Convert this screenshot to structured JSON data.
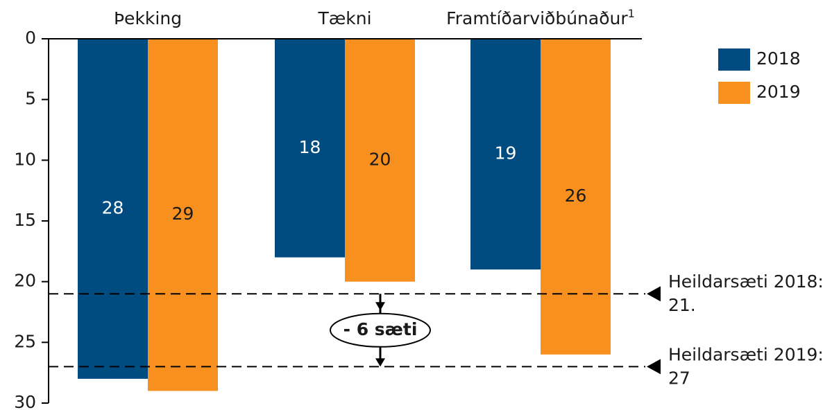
{
  "chart_data": {
    "type": "bar",
    "categories": [
      "Þekking",
      "Tækni",
      "Framtíðarviðbúnaður"
    ],
    "category_superscripts": [
      null,
      null,
      "1"
    ],
    "series": [
      {
        "name": "2018",
        "color": "#004b80",
        "label_color": "#ffffff",
        "values": [
          28,
          18,
          19
        ]
      },
      {
        "name": "2019",
        "color": "#f7901e",
        "label_color": "#1a1a1a",
        "values": [
          29,
          20,
          26
        ]
      }
    ],
    "ylim": [
      0,
      30
    ],
    "yticks": [
      0,
      5,
      10,
      15,
      20,
      25,
      30
    ],
    "y_inverted": true,
    "reference_lines": [
      {
        "value": 21,
        "label": [
          "Heildarsæti 2018:",
          "21."
        ]
      },
      {
        "value": 27,
        "label": [
          "Heildarsæti 2019:",
          "27"
        ]
      }
    ],
    "change_label": "- 6 sæti"
  }
}
